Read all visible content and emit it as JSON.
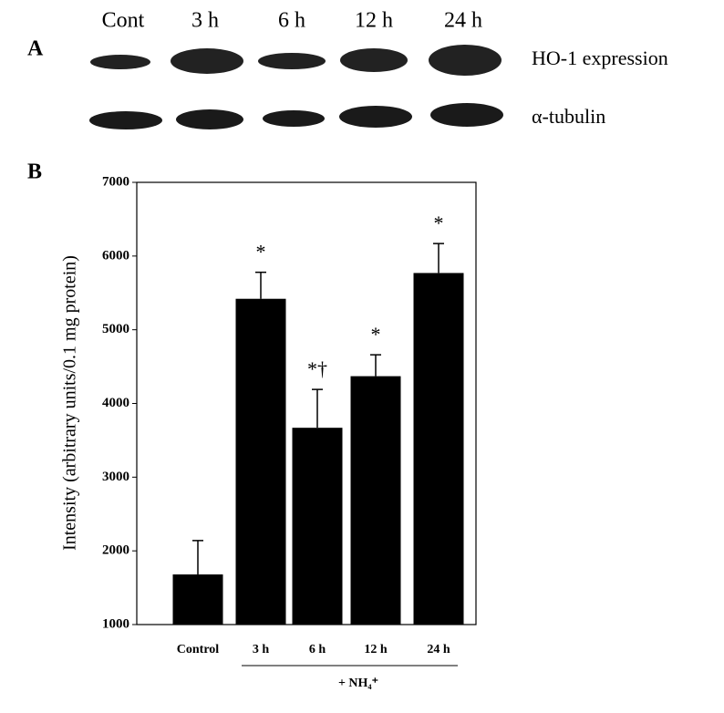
{
  "panel_a": {
    "label": "A",
    "lanes": [
      "Cont",
      "3 h",
      "6 h",
      "12 h",
      "24 h"
    ],
    "rows": [
      "HO-1 expression",
      "α-tubulin"
    ]
  },
  "chart_data": {
    "type": "bar",
    "panel_label": "B",
    "y_label": "Intensity (arbitrary units/0.1 mg protein)",
    "categories": [
      "Control",
      "3 h",
      "6 h",
      "12 h",
      "24 h"
    ],
    "values": [
      1680,
      5420,
      3670,
      4370,
      5770
    ],
    "errors": [
      460,
      360,
      520,
      290,
      400
    ],
    "annotations": [
      null,
      "*",
      "*†",
      "*",
      "*"
    ],
    "group_label": "+ NH₄⁺",
    "color": "#000000",
    "ylim": [
      1000,
      7000
    ],
    "yticks": [
      1000,
      2000,
      3000,
      4000,
      5000,
      6000,
      7000
    ]
  }
}
